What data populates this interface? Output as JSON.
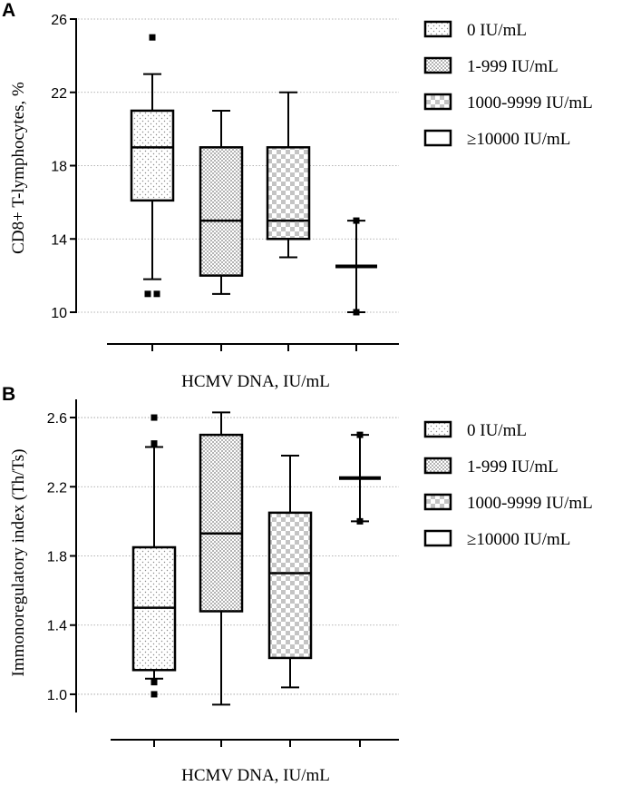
{
  "chart_data": [
    {
      "panel": "A",
      "type": "box",
      "ylabel": "CD8+ T-lymphocytes, %",
      "xlabel": "HCMV DNA, IU/mL",
      "ylim": [
        10,
        26
      ],
      "yticks": [
        10,
        14,
        18,
        22,
        26
      ],
      "grid": true,
      "legend_position": "right",
      "series": [
        {
          "name": "0 IU/mL",
          "pattern": "dots",
          "min": 11.8,
          "q1": 16.1,
          "median": 19.0,
          "q3": 21.0,
          "max": 23.0,
          "outliers": [
            25.0,
            11.0,
            11.0
          ]
        },
        {
          "name": "1-999 IU/mL",
          "pattern": "check-small",
          "min": 11.0,
          "q1": 12.0,
          "median": 15.0,
          "q3": 19.0,
          "max": 21.0,
          "outliers": []
        },
        {
          "name": "1000-9999 IU/mL",
          "pattern": "check-large",
          "min": 13.0,
          "q1": 14.0,
          "median": 15.0,
          "q3": 19.0,
          "max": 22.0,
          "outliers": []
        },
        {
          "name": "≥10000 IU/mL",
          "pattern": "none",
          "min": 10.0,
          "q1": 12.5,
          "median": 12.5,
          "q3": 12.5,
          "max": 15.0,
          "outliers": [
            10.0,
            15.0
          ]
        }
      ]
    },
    {
      "panel": "B",
      "type": "box",
      "ylabel": "Immonoregulatory index (Th/Ts)",
      "xlabel": "HCMV DNA, IU/mL",
      "ylim": [
        0.9,
        2.7
      ],
      "yticks": [
        "1.0",
        "1.4",
        "1.8",
        "2.2",
        "2.6"
      ],
      "grid": true,
      "legend_position": "right",
      "series": [
        {
          "name": "0 IU/mL",
          "pattern": "dots",
          "min": 1.09,
          "q1": 1.14,
          "median": 1.5,
          "q3": 1.85,
          "max": 2.43,
          "outliers": [
            2.6,
            2.45,
            1.07,
            1.0
          ]
        },
        {
          "name": "1-999 IU/mL",
          "pattern": "check-small",
          "min": 0.94,
          "q1": 1.48,
          "median": 1.93,
          "q3": 2.5,
          "max": 2.63,
          "outliers": []
        },
        {
          "name": "1000-9999 IU/mL",
          "pattern": "check-large",
          "min": 1.04,
          "q1": 1.21,
          "median": 1.7,
          "q3": 2.05,
          "max": 2.38,
          "outliers": []
        },
        {
          "name": "≥10000 IU/mL",
          "pattern": "none",
          "min": 2.0,
          "q1": 2.25,
          "median": 2.25,
          "q3": 2.25,
          "max": 2.5,
          "outliers": [
            2.0,
            2.5
          ]
        }
      ]
    }
  ]
}
